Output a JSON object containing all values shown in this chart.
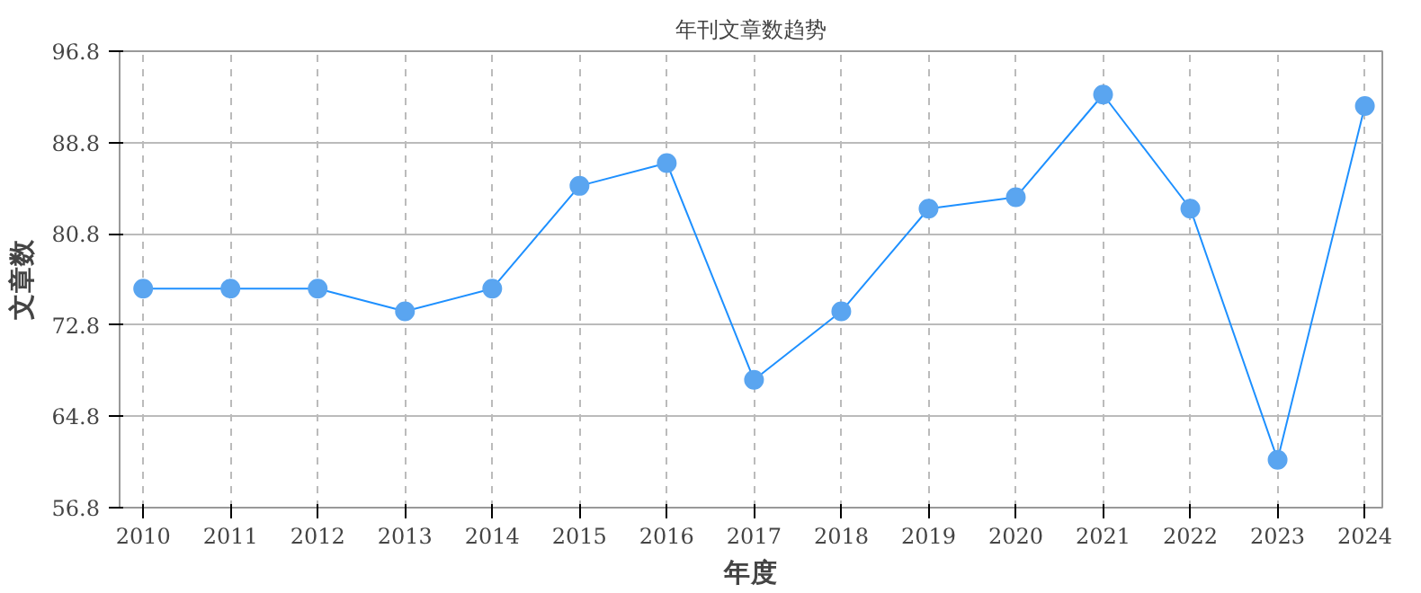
{
  "chart_data": {
    "type": "line",
    "title": "年刊文章数趋势",
    "xlabel": "年度",
    "ylabel": "文章数",
    "categories": [
      "2010",
      "2011",
      "2012",
      "2013",
      "2014",
      "2015",
      "2016",
      "2017",
      "2018",
      "2019",
      "2020",
      "2021",
      "2022",
      "2023",
      "2024"
    ],
    "series": [
      {
        "color": "#1e90ff",
        "values": [
          76,
          76,
          76,
          74,
          76,
          85,
          87,
          68,
          74,
          83,
          84,
          93,
          83,
          61,
          92
        ]
      }
    ],
    "ylim": [
      56.8,
      96.8
    ],
    "yticks": [
      56.8,
      64.8,
      72.8,
      80.8,
      88.8,
      96.8
    ],
    "grid": true,
    "marker": "circle",
    "line_style": "solid"
  }
}
